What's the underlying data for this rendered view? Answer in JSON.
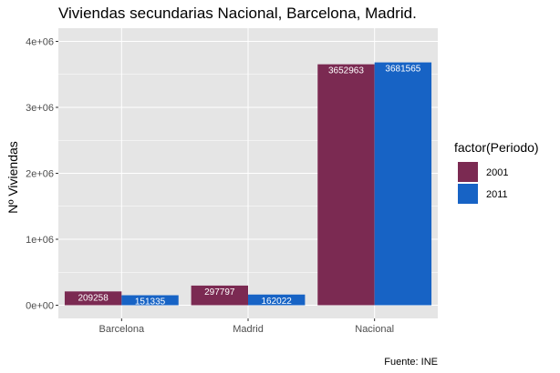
{
  "chart_data": {
    "type": "bar",
    "title": "Viviendas secundarias Nacional, Barcelona, Madrid.",
    "xlabel": "",
    "ylabel": "Nº Viviendas",
    "caption": "Fuente: INE",
    "categories": [
      "Barcelona",
      "Madrid",
      "Nacional"
    ],
    "series": [
      {
        "name": "2001",
        "color": "#7b2a52",
        "values": [
          209258,
          297797,
          3652963
        ]
      },
      {
        "name": "2011",
        "color": "#1763c5",
        "values": [
          151335,
          162022,
          3681565
        ]
      }
    ],
    "legend": {
      "title": "factor(Periodo)",
      "position": "right"
    },
    "ylim": [
      -200000,
      4200000
    ],
    "yticks": [
      0,
      1000000,
      2000000,
      3000000,
      4000000
    ],
    "ytick_labels": [
      "0e+00",
      "1e+06",
      "2e+06",
      "3e+06",
      "4e+06"
    ],
    "grid": true,
    "panel_background": "#e5e5e5",
    "grid_color": "#ffffff"
  }
}
